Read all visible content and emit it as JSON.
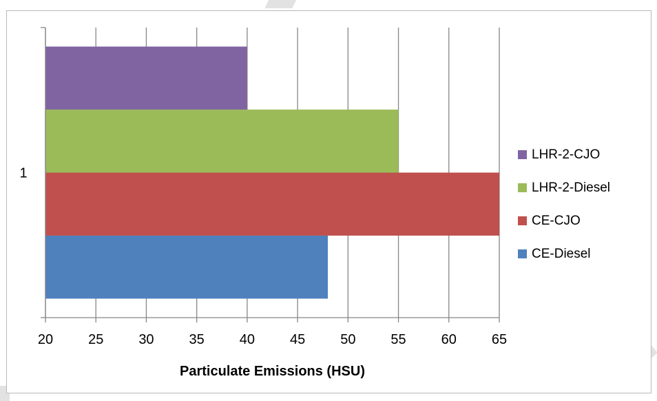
{
  "chart_data": {
    "type": "bar",
    "orientation": "horizontal",
    "categories": [
      "1"
    ],
    "series": [
      {
        "name": "CE-Diesel",
        "values": [
          48
        ],
        "color": "#4f81bd"
      },
      {
        "name": "CE-CJO",
        "values": [
          65
        ],
        "color": "#c0504d"
      },
      {
        "name": "LHR-2-Diesel",
        "values": [
          55
        ],
        "color": "#9bbb59"
      },
      {
        "name": "LHR-2-CJO",
        "values": [
          40
        ],
        "color": "#8064a2"
      }
    ],
    "title": "",
    "xlabel": "Particulate Emissions (HSU)",
    "ylabel": "",
    "xlim": [
      20,
      65
    ],
    "xticks": [
      "20",
      "25",
      "30",
      "35",
      "40",
      "45",
      "50",
      "55",
      "60",
      "65"
    ],
    "grid": "vertical major gridlines",
    "legend": "right",
    "legend_order": [
      "LHR-2-CJO",
      "LHR-2-Diesel",
      "CE-CJO",
      "CE-Diesel"
    ]
  }
}
